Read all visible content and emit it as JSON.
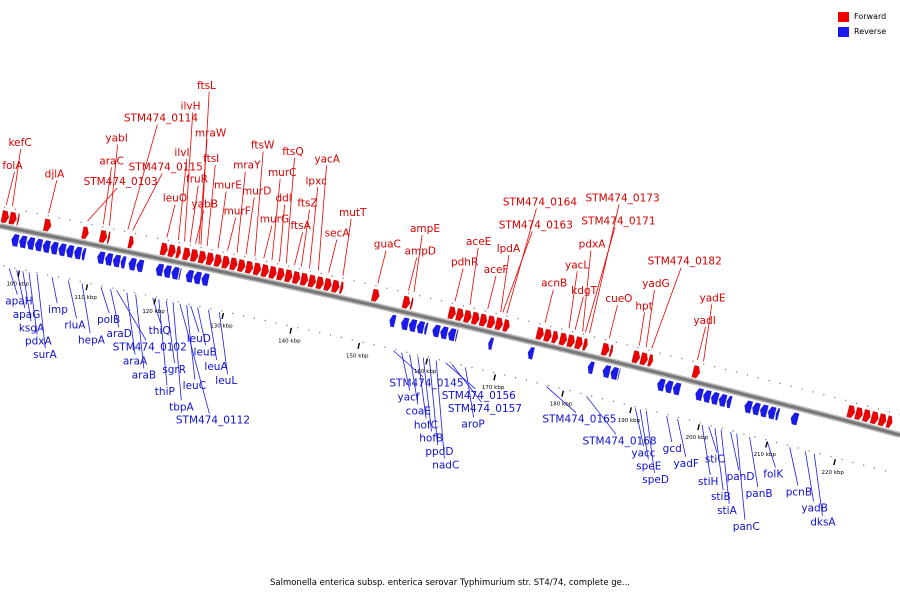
{
  "colors": {
    "forward": "#ee0000",
    "reverse": "#1a1aee",
    "backbone": "#777777"
  },
  "legend": {
    "forward_label": "Forward",
    "reverse_label": "Reverse"
  },
  "caption": "Salmonella enterica subsp. enterica serovar Typhimurium str. ST4/74, complete ge...",
  "axis": {
    "start_kbp": 96,
    "end_kbp": 228,
    "tick_labels": [
      "100 kbp",
      "110 kbp",
      "120 kbp",
      "130 kbp",
      "140 kbp",
      "150 kbp",
      "160 kbp",
      "170 kbp",
      "180 kbp",
      "190 kbp",
      "200 kbp",
      "210 kbp",
      "220 kbp"
    ]
  },
  "forward_genes": [
    {
      "name": "folA",
      "kbp": 96.3
    },
    {
      "name": "kefC",
      "kbp": 97.2
    },
    {
      "name": "djlA",
      "kbp": 102.5
    },
    {
      "name": "STM474_0103",
      "kbp": 108.2
    },
    {
      "name": "araC",
      "kbp": 110.5
    },
    {
      "name": "yabI",
      "kbp": 111.4
    },
    {
      "name": "STM474_0115",
      "kbp": 114.8
    },
    {
      "name": "STM474_0114",
      "kbp": 114.1
    },
    {
      "name": "leuO",
      "kbp": 119.8
    },
    {
      "name": "ilvI",
      "kbp": 121.5
    },
    {
      "name": "ilvH",
      "kbp": 122.4
    },
    {
      "name": "fruR",
      "kbp": 123.2
    },
    {
      "name": "yabB",
      "kbp": 124.0
    },
    {
      "name": "ftsL",
      "kbp": 124.8
    },
    {
      "name": "mraW",
      "kbp": 124.5
    },
    {
      "name": "ftsI",
      "kbp": 125.7
    },
    {
      "name": "murE",
      "kbp": 127.3
    },
    {
      "name": "murF",
      "kbp": 128.7
    },
    {
      "name": "mraY",
      "kbp": 130.1
    },
    {
      "name": "murD",
      "kbp": 131.4
    },
    {
      "name": "ftsW",
      "kbp": 132.7
    },
    {
      "name": "murG",
      "kbp": 134.0
    },
    {
      "name": "murC",
      "kbp": 135.2
    },
    {
      "name": "ddl",
      "kbp": 136.3
    },
    {
      "name": "ftsQ",
      "kbp": 137.3
    },
    {
      "name": "ftsA",
      "kbp": 138.5
    },
    {
      "name": "ftsZ",
      "kbp": 139.5
    },
    {
      "name": "lpxc",
      "kbp": 140.7
    },
    {
      "name": "yacA",
      "kbp": 142.0
    },
    {
      "name": "secA",
      "kbp": 143.5
    },
    {
      "name": "mutT",
      "kbp": 145.6
    },
    {
      "name": "guaC",
      "kbp": 150.7
    },
    {
      "name": "ampD",
      "kbp": 155.2
    },
    {
      "name": "ampE",
      "kbp": 156.0
    },
    {
      "name": "pdhR",
      "kbp": 162.0
    },
    {
      "name": "aceE",
      "kbp": 164.2
    },
    {
      "name": "aceF",
      "kbp": 166.8
    },
    {
      "name": "lpdA",
      "kbp": 168.7
    },
    {
      "name": "STM474_0164",
      "kbp": 169.6
    },
    {
      "name": "STM474_0163",
      "kbp": 169.0
    },
    {
      "name": "acnB",
      "kbp": 175.2
    },
    {
      "name": "yacL",
      "kbp": 178.7
    },
    {
      "name": "kdgT",
      "kbp": 179.6
    },
    {
      "name": "pdxA",
      "kbp": 180.7
    },
    {
      "name": "STM474_0173",
      "kbp": 181.7
    },
    {
      "name": "STM474_0171",
      "kbp": 181.1
    },
    {
      "name": "cueO",
      "kbp": 184.6
    },
    {
      "name": "hpt",
      "kbp": 189.0
    },
    {
      "name": "yadG",
      "kbp": 190.0
    },
    {
      "name": "STM474_0182",
      "kbp": 190.8
    },
    {
      "name": "yadI",
      "kbp": 197.5
    },
    {
      "name": "yadE",
      "kbp": 198.4
    }
  ],
  "reverse_genes": [
    {
      "name": "apaH",
      "kbp": 98.5
    },
    {
      "name": "apaG",
      "kbp": 99.6
    },
    {
      "name": "ksgA",
      "kbp": 100.5
    },
    {
      "name": "pdxA",
      "kbp": 101.4
    },
    {
      "name": "surA",
      "kbp": 102.6
    },
    {
      "name": "imp",
      "kbp": 104.8
    },
    {
      "name": "rluA",
      "kbp": 107.2
    },
    {
      "name": "hepA",
      "kbp": 109.2
    },
    {
      "name": "polB",
      "kbp": 112.0
    },
    {
      "name": "araD",
      "kbp": 113.4
    },
    {
      "name": "STM474_0102",
      "kbp": 114.3
    },
    {
      "name": "araA",
      "kbp": 115.8
    },
    {
      "name": "araB",
      "kbp": 117.1
    },
    {
      "name": "thiQ",
      "kbp": 119.6
    },
    {
      "name": "thiP",
      "kbp": 120.5
    },
    {
      "name": "sgrR",
      "kbp": 121.6
    },
    {
      "name": "tbpA",
      "kbp": 122.6
    },
    {
      "name": "STM474_0112",
      "kbp": 123.6
    },
    {
      "name": "leuC",
      "kbp": 124.6
    },
    {
      "name": "leuD",
      "kbp": 125.2
    },
    {
      "name": "leuB",
      "kbp": 126.2
    },
    {
      "name": "leuA",
      "kbp": 127.8
    },
    {
      "name": "leuL",
      "kbp": 129.4
    },
    {
      "name": "STM474_0145",
      "kbp": 155.0
    },
    {
      "name": "yacf",
      "kbp": 156.2
    },
    {
      "name": "coaE",
      "kbp": 157.4
    },
    {
      "name": "hofC",
      "kbp": 158.6
    },
    {
      "name": "hofB",
      "kbp": 159.4
    },
    {
      "name": "ppdD",
      "kbp": 160.3
    },
    {
      "name": "nadC",
      "kbp": 161.3
    },
    {
      "name": "STM474_0156",
      "kbp": 162.7
    },
    {
      "name": "STM474_0157",
      "kbp": 163.6
    },
    {
      "name": "aroP",
      "kbp": 165.6
    },
    {
      "name": "STM474_0165",
      "kbp": 177.5
    },
    {
      "name": "STM474_0168",
      "kbp": 183.4
    },
    {
      "name": "yacc",
      "kbp": 190.6
    },
    {
      "name": "speE",
      "kbp": 191.3
    },
    {
      "name": "speD",
      "kbp": 192.2
    },
    {
      "name": "gcd",
      "kbp": 195.2
    },
    {
      "name": "yadF",
      "kbp": 196.8
    },
    {
      "name": "stiH",
      "kbp": 200.4
    },
    {
      "name": "stiC",
      "kbp": 201.4
    },
    {
      "name": "stiB",
      "kbp": 202.3
    },
    {
      "name": "stiA",
      "kbp": 203.2
    },
    {
      "name": "panD",
      "kbp": 204.6
    },
    {
      "name": "panC",
      "kbp": 205.5
    },
    {
      "name": "panB",
      "kbp": 207.4
    },
    {
      "name": "folK",
      "kbp": 210.0
    },
    {
      "name": "pcnB",
      "kbp": 213.3
    },
    {
      "name": "yadB",
      "kbp": 215.6
    },
    {
      "name": "dksA",
      "kbp": 216.9
    }
  ],
  "forward_blocks": [
    [
      96,
      98.5
    ],
    [
      102.2,
      103.2
    ],
    [
      107.8,
      108.7
    ],
    [
      110.4,
      111.8
    ],
    [
      114.6,
      115.3
    ],
    [
      119.3,
      122.2
    ],
    [
      122.6,
      146.0
    ],
    [
      150.3,
      151.3
    ],
    [
      154.8,
      156.2
    ],
    [
      161.5,
      170.4
    ],
    [
      174.4,
      177.5
    ],
    [
      177.8,
      181.8
    ],
    [
      184.0,
      185.5
    ],
    [
      188.5,
      191.4
    ],
    [
      197.3,
      198.3
    ],
    [
      220.0,
      226.5
    ]
  ],
  "reverse_blocks": [
    [
      98.0,
      108.8
    ],
    [
      110.6,
      114.7
    ],
    [
      115.2,
      117.3
    ],
    [
      119.2,
      122.8
    ],
    [
      123.6,
      126.9
    ],
    [
      153.5,
      154.3
    ],
    [
      155.2,
      159.0
    ],
    [
      159.8,
      163.4
    ],
    [
      168.0,
      168.6
    ],
    [
      173.8,
      174.6
    ],
    [
      182.6,
      183.4
    ],
    [
      184.8,
      187.2
    ],
    [
      192.8,
      196.2
    ],
    [
      198.4,
      203.6
    ],
    [
      205.6,
      210.6
    ],
    [
      212.4,
      213.4
    ]
  ]
}
